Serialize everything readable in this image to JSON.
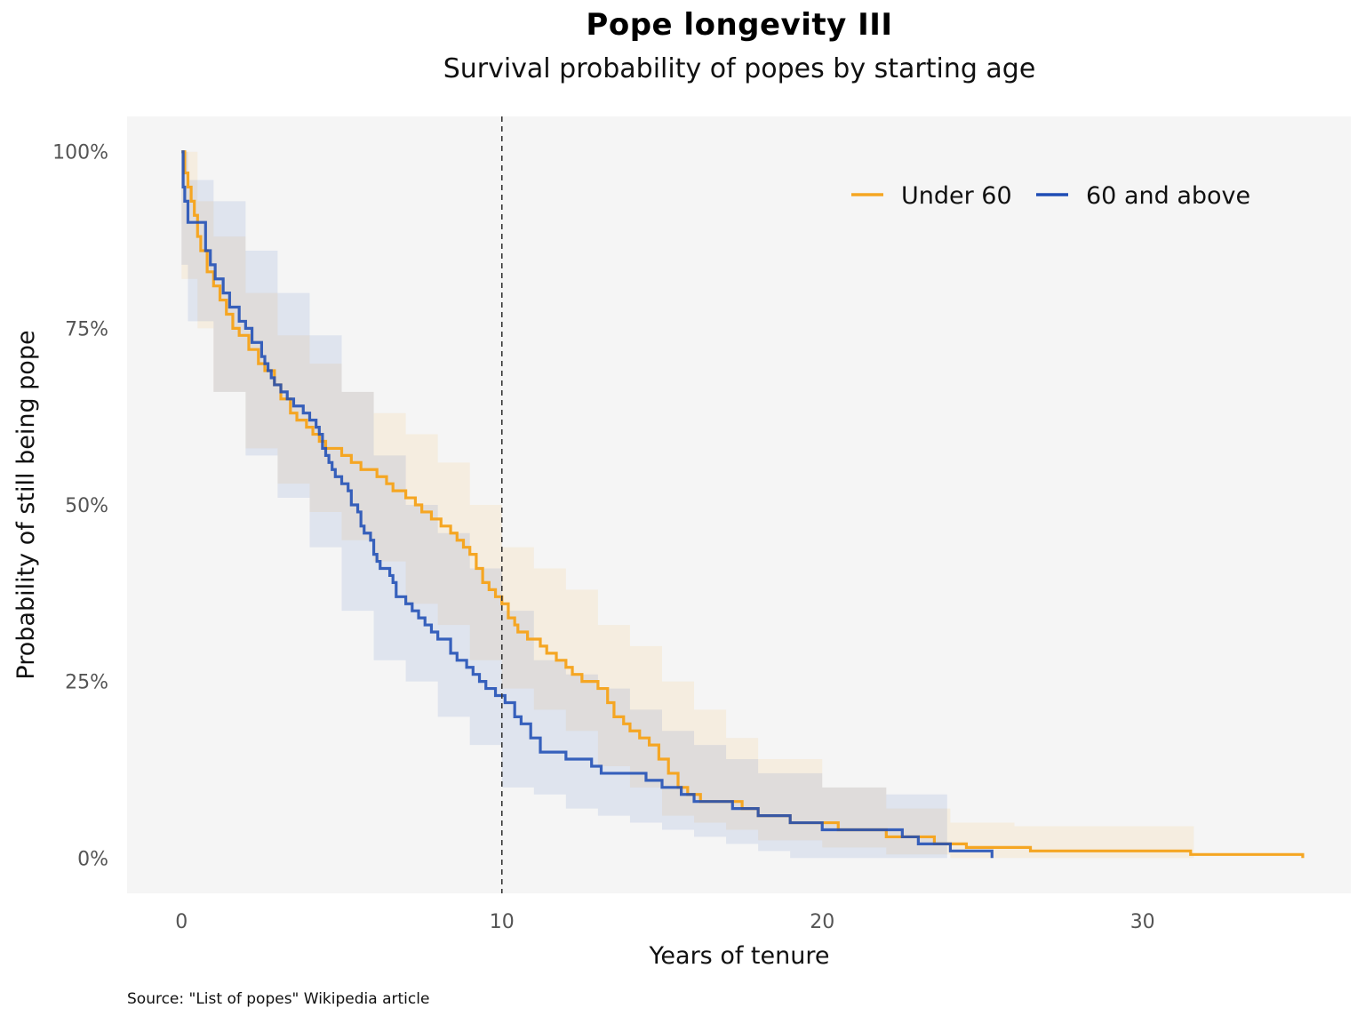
{
  "title": "Pope longevity III",
  "subtitle": "Survival probability of popes by starting age",
  "source": "Source: \"List of popes\" Wikipedia article",
  "colors": {
    "under60": "#F5A623",
    "above60": "#1F4DB5",
    "panel": "#F5F5F5",
    "refline": "#333333"
  },
  "chart_data": {
    "type": "line",
    "title": "Pope longevity III",
    "subtitle": "Survival probability of popes by starting age",
    "xlabel": "Years of tenure",
    "ylabel": "Probability of still being pope",
    "xlim": [
      -1.7,
      36.5
    ],
    "ylim": [
      -0.05,
      1.05
    ],
    "xticks": [
      0,
      10,
      20,
      30
    ],
    "xtick_labels": [
      "0",
      "10",
      "20",
      "30"
    ],
    "yticks": [
      0,
      0.25,
      0.5,
      0.75,
      1.0
    ],
    "ytick_labels": [
      "0%",
      "25%",
      "50%",
      "75%",
      "100%"
    ],
    "reference_line_x": 10,
    "legend_position": "top-right",
    "grid": false,
    "series": [
      {
        "name": "Under 60",
        "color": "#F5A623",
        "steps": [
          [
            0,
            1.0
          ],
          [
            0.1,
            0.97
          ],
          [
            0.2,
            0.95
          ],
          [
            0.3,
            0.93
          ],
          [
            0.4,
            0.91
          ],
          [
            0.5,
            0.88
          ],
          [
            0.6,
            0.86
          ],
          [
            0.8,
            0.83
          ],
          [
            1.0,
            0.81
          ],
          [
            1.2,
            0.79
          ],
          [
            1.4,
            0.77
          ],
          [
            1.6,
            0.75
          ],
          [
            1.8,
            0.74
          ],
          [
            2.1,
            0.72
          ],
          [
            2.4,
            0.7
          ],
          [
            2.6,
            0.69
          ],
          [
            2.9,
            0.67
          ],
          [
            3.1,
            0.65
          ],
          [
            3.4,
            0.63
          ],
          [
            3.6,
            0.62
          ],
          [
            3.9,
            0.61
          ],
          [
            4.1,
            0.6
          ],
          [
            4.3,
            0.59
          ],
          [
            4.5,
            0.58
          ],
          [
            5.0,
            0.57
          ],
          [
            5.3,
            0.56
          ],
          [
            5.6,
            0.55
          ],
          [
            6.1,
            0.54
          ],
          [
            6.4,
            0.53
          ],
          [
            6.6,
            0.52
          ],
          [
            7.0,
            0.51
          ],
          [
            7.3,
            0.5
          ],
          [
            7.5,
            0.49
          ],
          [
            7.8,
            0.48
          ],
          [
            8.1,
            0.47
          ],
          [
            8.4,
            0.46
          ],
          [
            8.6,
            0.45
          ],
          [
            8.8,
            0.44
          ],
          [
            9.0,
            0.43
          ],
          [
            9.2,
            0.41
          ],
          [
            9.4,
            0.39
          ],
          [
            9.6,
            0.38
          ],
          [
            9.8,
            0.37
          ],
          [
            10.0,
            0.36
          ],
          [
            10.2,
            0.34
          ],
          [
            10.4,
            0.33
          ],
          [
            10.5,
            0.32
          ],
          [
            10.8,
            0.31
          ],
          [
            11.2,
            0.3
          ],
          [
            11.4,
            0.29
          ],
          [
            11.7,
            0.28
          ],
          [
            12.0,
            0.27
          ],
          [
            12.2,
            0.26
          ],
          [
            12.5,
            0.25
          ],
          [
            13.0,
            0.24
          ],
          [
            13.3,
            0.22
          ],
          [
            13.5,
            0.2
          ],
          [
            13.8,
            0.19
          ],
          [
            14.0,
            0.18
          ],
          [
            14.3,
            0.17
          ],
          [
            14.6,
            0.16
          ],
          [
            14.9,
            0.14
          ],
          [
            15.2,
            0.12
          ],
          [
            15.5,
            0.1
          ],
          [
            15.8,
            0.09
          ],
          [
            16.2,
            0.08
          ],
          [
            17.5,
            0.07
          ],
          [
            18.0,
            0.06
          ],
          [
            19.0,
            0.05
          ],
          [
            20.5,
            0.04
          ],
          [
            22.0,
            0.03
          ],
          [
            23.5,
            0.02
          ],
          [
            24.5,
            0.015
          ],
          [
            26.5,
            0.01
          ],
          [
            31.5,
            0.005
          ],
          [
            35.0,
            0.0
          ]
        ],
        "ci_lower": [
          [
            0,
            1.0
          ],
          [
            0.5,
            0.82
          ],
          [
            1.0,
            0.75
          ],
          [
            2.0,
            0.66
          ],
          [
            3.0,
            0.58
          ],
          [
            4.0,
            0.53
          ],
          [
            5.0,
            0.49
          ],
          [
            6.0,
            0.45
          ],
          [
            7.0,
            0.42
          ],
          [
            8.0,
            0.36
          ],
          [
            9.0,
            0.33
          ],
          [
            10.0,
            0.28
          ],
          [
            11.0,
            0.24
          ],
          [
            12.0,
            0.21
          ],
          [
            13.0,
            0.18
          ],
          [
            14.0,
            0.13
          ],
          [
            15.0,
            0.1
          ],
          [
            16.0,
            0.06
          ],
          [
            17.0,
            0.05
          ],
          [
            18.0,
            0.04
          ],
          [
            20.0,
            0.025
          ],
          [
            22.0,
            0.015
          ],
          [
            24.0,
            0.005
          ],
          [
            26.0,
            0.0
          ],
          [
            31.6,
            0.0
          ]
        ],
        "ci_upper": [
          [
            0,
            1.0
          ],
          [
            0.5,
            0.93
          ],
          [
            1.0,
            0.88
          ],
          [
            2.0,
            0.8
          ],
          [
            3.0,
            0.74
          ],
          [
            4.0,
            0.7
          ],
          [
            5.0,
            0.66
          ],
          [
            6.0,
            0.63
          ],
          [
            7.0,
            0.6
          ],
          [
            8.0,
            0.56
          ],
          [
            9.0,
            0.5
          ],
          [
            10.0,
            0.44
          ],
          [
            11.0,
            0.41
          ],
          [
            12.0,
            0.38
          ],
          [
            13.0,
            0.33
          ],
          [
            14.0,
            0.3
          ],
          [
            15.0,
            0.25
          ],
          [
            16.0,
            0.21
          ],
          [
            17.0,
            0.17
          ],
          [
            18.0,
            0.14
          ],
          [
            20.0,
            0.1
          ],
          [
            22.0,
            0.07
          ],
          [
            24.0,
            0.05
          ],
          [
            26.0,
            0.045
          ],
          [
            31.6,
            0.045
          ]
        ]
      },
      {
        "name": "60 and above",
        "color": "#1F4DB5",
        "steps": [
          [
            0,
            1.0
          ],
          [
            0.05,
            0.95
          ],
          [
            0.1,
            0.93
          ],
          [
            0.2,
            0.9
          ],
          [
            0.75,
            0.86
          ],
          [
            0.9,
            0.84
          ],
          [
            1.05,
            0.82
          ],
          [
            1.3,
            0.8
          ],
          [
            1.5,
            0.78
          ],
          [
            1.8,
            0.76
          ],
          [
            2.0,
            0.75
          ],
          [
            2.2,
            0.73
          ],
          [
            2.5,
            0.71
          ],
          [
            2.6,
            0.7
          ],
          [
            2.7,
            0.69
          ],
          [
            2.8,
            0.68
          ],
          [
            2.9,
            0.67
          ],
          [
            3.1,
            0.66
          ],
          [
            3.3,
            0.65
          ],
          [
            3.5,
            0.64
          ],
          [
            3.8,
            0.63
          ],
          [
            4.0,
            0.62
          ],
          [
            4.2,
            0.61
          ],
          [
            4.3,
            0.6
          ],
          [
            4.4,
            0.58
          ],
          [
            4.5,
            0.57
          ],
          [
            4.6,
            0.56
          ],
          [
            4.7,
            0.55
          ],
          [
            4.8,
            0.54
          ],
          [
            5.0,
            0.53
          ],
          [
            5.2,
            0.52
          ],
          [
            5.3,
            0.5
          ],
          [
            5.5,
            0.49
          ],
          [
            5.6,
            0.47
          ],
          [
            5.7,
            0.46
          ],
          [
            5.9,
            0.45
          ],
          [
            6.0,
            0.43
          ],
          [
            6.1,
            0.42
          ],
          [
            6.2,
            0.41
          ],
          [
            6.5,
            0.4
          ],
          [
            6.6,
            0.39
          ],
          [
            6.7,
            0.37
          ],
          [
            7.0,
            0.36
          ],
          [
            7.2,
            0.35
          ],
          [
            7.4,
            0.34
          ],
          [
            7.6,
            0.33
          ],
          [
            7.8,
            0.32
          ],
          [
            8.0,
            0.31
          ],
          [
            8.4,
            0.29
          ],
          [
            8.6,
            0.28
          ],
          [
            8.9,
            0.27
          ],
          [
            9.1,
            0.26
          ],
          [
            9.3,
            0.25
          ],
          [
            9.5,
            0.24
          ],
          [
            9.8,
            0.23
          ],
          [
            10.1,
            0.22
          ],
          [
            10.4,
            0.2
          ],
          [
            10.6,
            0.19
          ],
          [
            10.9,
            0.17
          ],
          [
            11.2,
            0.15
          ],
          [
            12.0,
            0.14
          ],
          [
            12.8,
            0.13
          ],
          [
            13.1,
            0.12
          ],
          [
            14.5,
            0.11
          ],
          [
            15.0,
            0.1
          ],
          [
            15.6,
            0.09
          ],
          [
            16.0,
            0.08
          ],
          [
            17.2,
            0.07
          ],
          [
            18.0,
            0.06
          ],
          [
            19.0,
            0.05
          ],
          [
            20.0,
            0.04
          ],
          [
            22.5,
            0.03
          ],
          [
            23.0,
            0.02
          ],
          [
            24.0,
            0.01
          ],
          [
            25.3,
            0.0
          ]
        ],
        "ci_lower": [
          [
            0,
            1.0
          ],
          [
            0.2,
            0.84
          ],
          [
            1.0,
            0.76
          ],
          [
            2.0,
            0.66
          ],
          [
            3.0,
            0.57
          ],
          [
            4.0,
            0.51
          ],
          [
            5.0,
            0.44
          ],
          [
            6.0,
            0.35
          ],
          [
            7.0,
            0.28
          ],
          [
            8.0,
            0.25
          ],
          [
            9.0,
            0.2
          ],
          [
            10.0,
            0.16
          ],
          [
            11.0,
            0.1
          ],
          [
            12.0,
            0.09
          ],
          [
            13.0,
            0.07
          ],
          [
            14.0,
            0.06
          ],
          [
            15.0,
            0.05
          ],
          [
            16.0,
            0.04
          ],
          [
            17.0,
            0.03
          ],
          [
            18.0,
            0.02
          ],
          [
            19.0,
            0.01
          ],
          [
            20.0,
            0.0
          ],
          [
            23.9,
            0.0
          ]
        ],
        "ci_upper": [
          [
            0,
            1.0
          ],
          [
            0.2,
            0.96
          ],
          [
            1.0,
            0.93
          ],
          [
            2.0,
            0.86
          ],
          [
            3.0,
            0.8
          ],
          [
            4.0,
            0.74
          ],
          [
            5.0,
            0.66
          ],
          [
            6.0,
            0.57
          ],
          [
            7.0,
            0.5
          ],
          [
            8.0,
            0.46
          ],
          [
            9.0,
            0.41
          ],
          [
            10.0,
            0.35
          ],
          [
            11.0,
            0.28
          ],
          [
            12.0,
            0.26
          ],
          [
            13.0,
            0.24
          ],
          [
            14.0,
            0.21
          ],
          [
            15.0,
            0.18
          ],
          [
            16.0,
            0.16
          ],
          [
            17.0,
            0.14
          ],
          [
            18.0,
            0.12
          ],
          [
            20.0,
            0.1
          ],
          [
            22.0,
            0.09
          ],
          [
            23.9,
            0.09
          ]
        ]
      }
    ]
  }
}
